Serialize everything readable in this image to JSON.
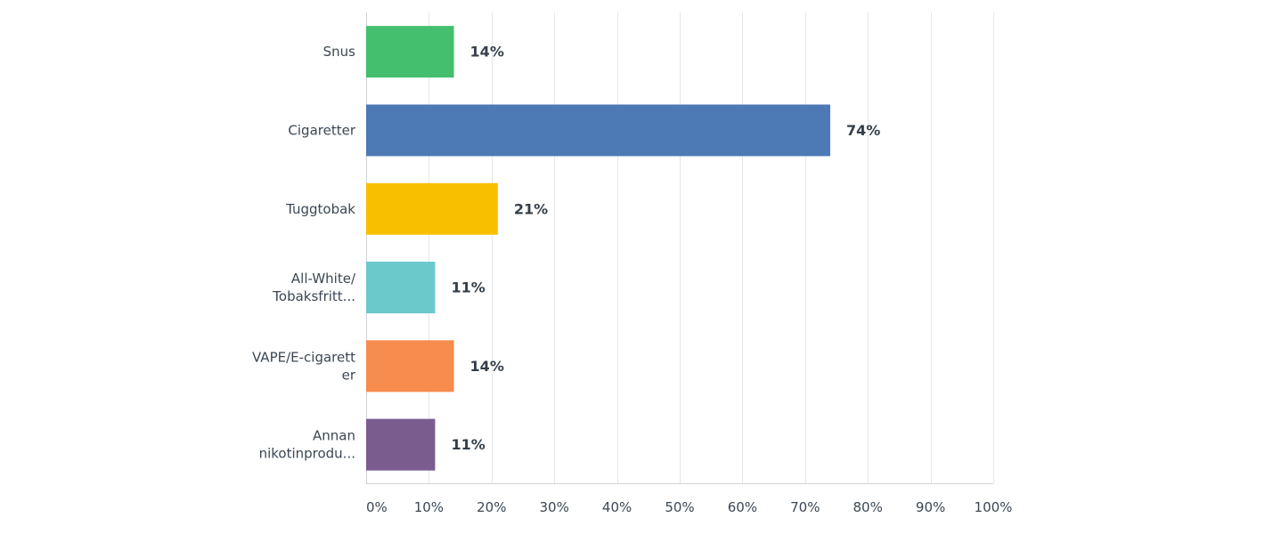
{
  "chart_data": {
    "type": "bar",
    "orientation": "horizontal",
    "categories": [
      [
        "Snus"
      ],
      [
        "Cigaretter"
      ],
      [
        "Tuggtobak"
      ],
      [
        "All-White/",
        "Tobaksfritt..."
      ],
      [
        "VAPE/E-cigarett",
        "er"
      ],
      [
        "Annan",
        "nikotinprodu..."
      ]
    ],
    "values": [
      14,
      74,
      21,
      11,
      14,
      11
    ],
    "value_labels": [
      "14%",
      "74%",
      "21%",
      "11%",
      "14%",
      "11%"
    ],
    "colors": [
      "#43bf6d",
      "#4d7ab5",
      "#f7bf00",
      "#6bc8cb",
      "#f68c4d",
      "#7b5c8f"
    ],
    "xlim": [
      0,
      100
    ],
    "xticks": [
      0,
      10,
      20,
      30,
      40,
      50,
      60,
      70,
      80,
      90,
      100
    ],
    "xtick_labels": [
      "0%",
      "10%",
      "20%",
      "30%",
      "40%",
      "50%",
      "60%",
      "70%",
      "80%",
      "90%",
      "100%"
    ],
    "grid": true,
    "title": "",
    "xlabel": "",
    "ylabel": ""
  }
}
